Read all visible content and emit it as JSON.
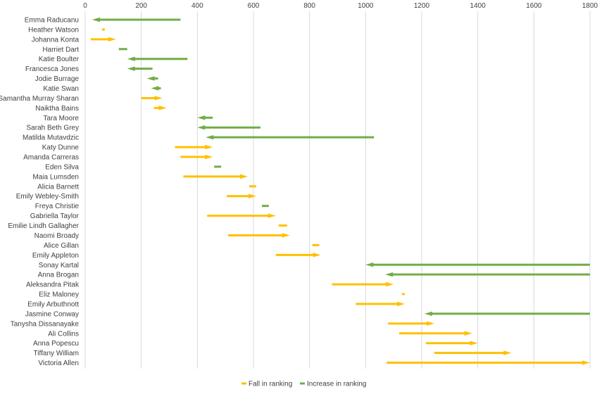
{
  "chart_data": {
    "type": "bar",
    "subtype": "arrow-range",
    "xlim": [
      0,
      1800
    ],
    "xticks": [
      0,
      200,
      400,
      600,
      800,
      1000,
      1200,
      1400,
      1600,
      1800
    ],
    "grid": "vertical",
    "legend_position": "bottom",
    "colors": {
      "fall": "#FFC000",
      "increase": "#70AD47",
      "grid": "#D9D9D9"
    },
    "legend": [
      {
        "key": "fall",
        "label": "Fall in ranking"
      },
      {
        "key": "increase",
        "label": "Increase in ranking"
      }
    ],
    "rows": [
      {
        "name": "Emma Raducanu",
        "from": 340,
        "to": 25,
        "type": "increase"
      },
      {
        "name": "Heather Watson",
        "from": 60,
        "to": 70,
        "type": "fall"
      },
      {
        "name": "Johanna Konta",
        "from": 20,
        "to": 110,
        "type": "fall"
      },
      {
        "name": "Harriet Dart",
        "from": 150,
        "to": 120,
        "type": "increase"
      },
      {
        "name": "Katie Boulter",
        "from": 365,
        "to": 150,
        "type": "increase"
      },
      {
        "name": "Francesca Jones",
        "from": 240,
        "to": 150,
        "type": "increase"
      },
      {
        "name": "Jodie Burrage",
        "from": 260,
        "to": 220,
        "type": "increase"
      },
      {
        "name": "Katie Swan",
        "from": 270,
        "to": 235,
        "type": "increase"
      },
      {
        "name": "Samantha Murray Sharan",
        "from": 200,
        "to": 275,
        "type": "fall"
      },
      {
        "name": "Naiktha Bains",
        "from": 245,
        "to": 290,
        "type": "fall"
      },
      {
        "name": "Tara Moore",
        "from": 455,
        "to": 400,
        "type": "increase"
      },
      {
        "name": "Sarah Beth Grey",
        "from": 625,
        "to": 400,
        "type": "increase"
      },
      {
        "name": "Matilda Mutavdzic",
        "from": 1030,
        "to": 430,
        "type": "increase"
      },
      {
        "name": "Katy Dunne",
        "from": 320,
        "to": 455,
        "type": "fall"
      },
      {
        "name": "Amanda Carreras",
        "from": 340,
        "to": 455,
        "type": "fall"
      },
      {
        "name": "Eden Silva",
        "from": 485,
        "to": 460,
        "type": "increase"
      },
      {
        "name": "Maia Lumsden",
        "from": 350,
        "to": 580,
        "type": "fall"
      },
      {
        "name": "Alicia Barnett",
        "from": 585,
        "to": 610,
        "type": "fall"
      },
      {
        "name": "Emily Webley-Smith",
        "from": 505,
        "to": 610,
        "type": "fall"
      },
      {
        "name": "Freya Christie",
        "from": 655,
        "to": 630,
        "type": "increase"
      },
      {
        "name": "Gabriella Taylor",
        "from": 435,
        "to": 680,
        "type": "fall"
      },
      {
        "name": "Emilie Lindh Gallagher",
        "from": 690,
        "to": 720,
        "type": "fall"
      },
      {
        "name": "Naomi Broady",
        "from": 510,
        "to": 730,
        "type": "fall"
      },
      {
        "name": "Alice Gillan",
        "from": 810,
        "to": 835,
        "type": "fall"
      },
      {
        "name": "Emily Appleton",
        "from": 680,
        "to": 840,
        "type": "fall"
      },
      {
        "name": "Sonay Kartal",
        "from": 1800,
        "to": 1000,
        "type": "increase"
      },
      {
        "name": "Anna Brogan",
        "from": 1800,
        "to": 1070,
        "type": "increase"
      },
      {
        "name": "Aleksandra Pitak",
        "from": 880,
        "to": 1100,
        "type": "fall"
      },
      {
        "name": "Eliz Maloney",
        "from": 1130,
        "to": 1140,
        "type": "fall"
      },
      {
        "name": "Emily Arbuthnott",
        "from": 965,
        "to": 1140,
        "type": "fall"
      },
      {
        "name": "Jasmine Conway",
        "from": 1800,
        "to": 1210,
        "type": "increase"
      },
      {
        "name": "Tanysha Dissanayake",
        "from": 1080,
        "to": 1245,
        "type": "fall"
      },
      {
        "name": "Ali Collins",
        "from": 1120,
        "to": 1380,
        "type": "fall"
      },
      {
        "name": "Anna Popescu",
        "from": 1215,
        "to": 1400,
        "type": "fall"
      },
      {
        "name": "Tiffany William",
        "from": 1245,
        "to": 1520,
        "type": "fall"
      },
      {
        "name": "Victoria Allen",
        "from": 1075,
        "to": 1800,
        "type": "fall"
      }
    ]
  }
}
